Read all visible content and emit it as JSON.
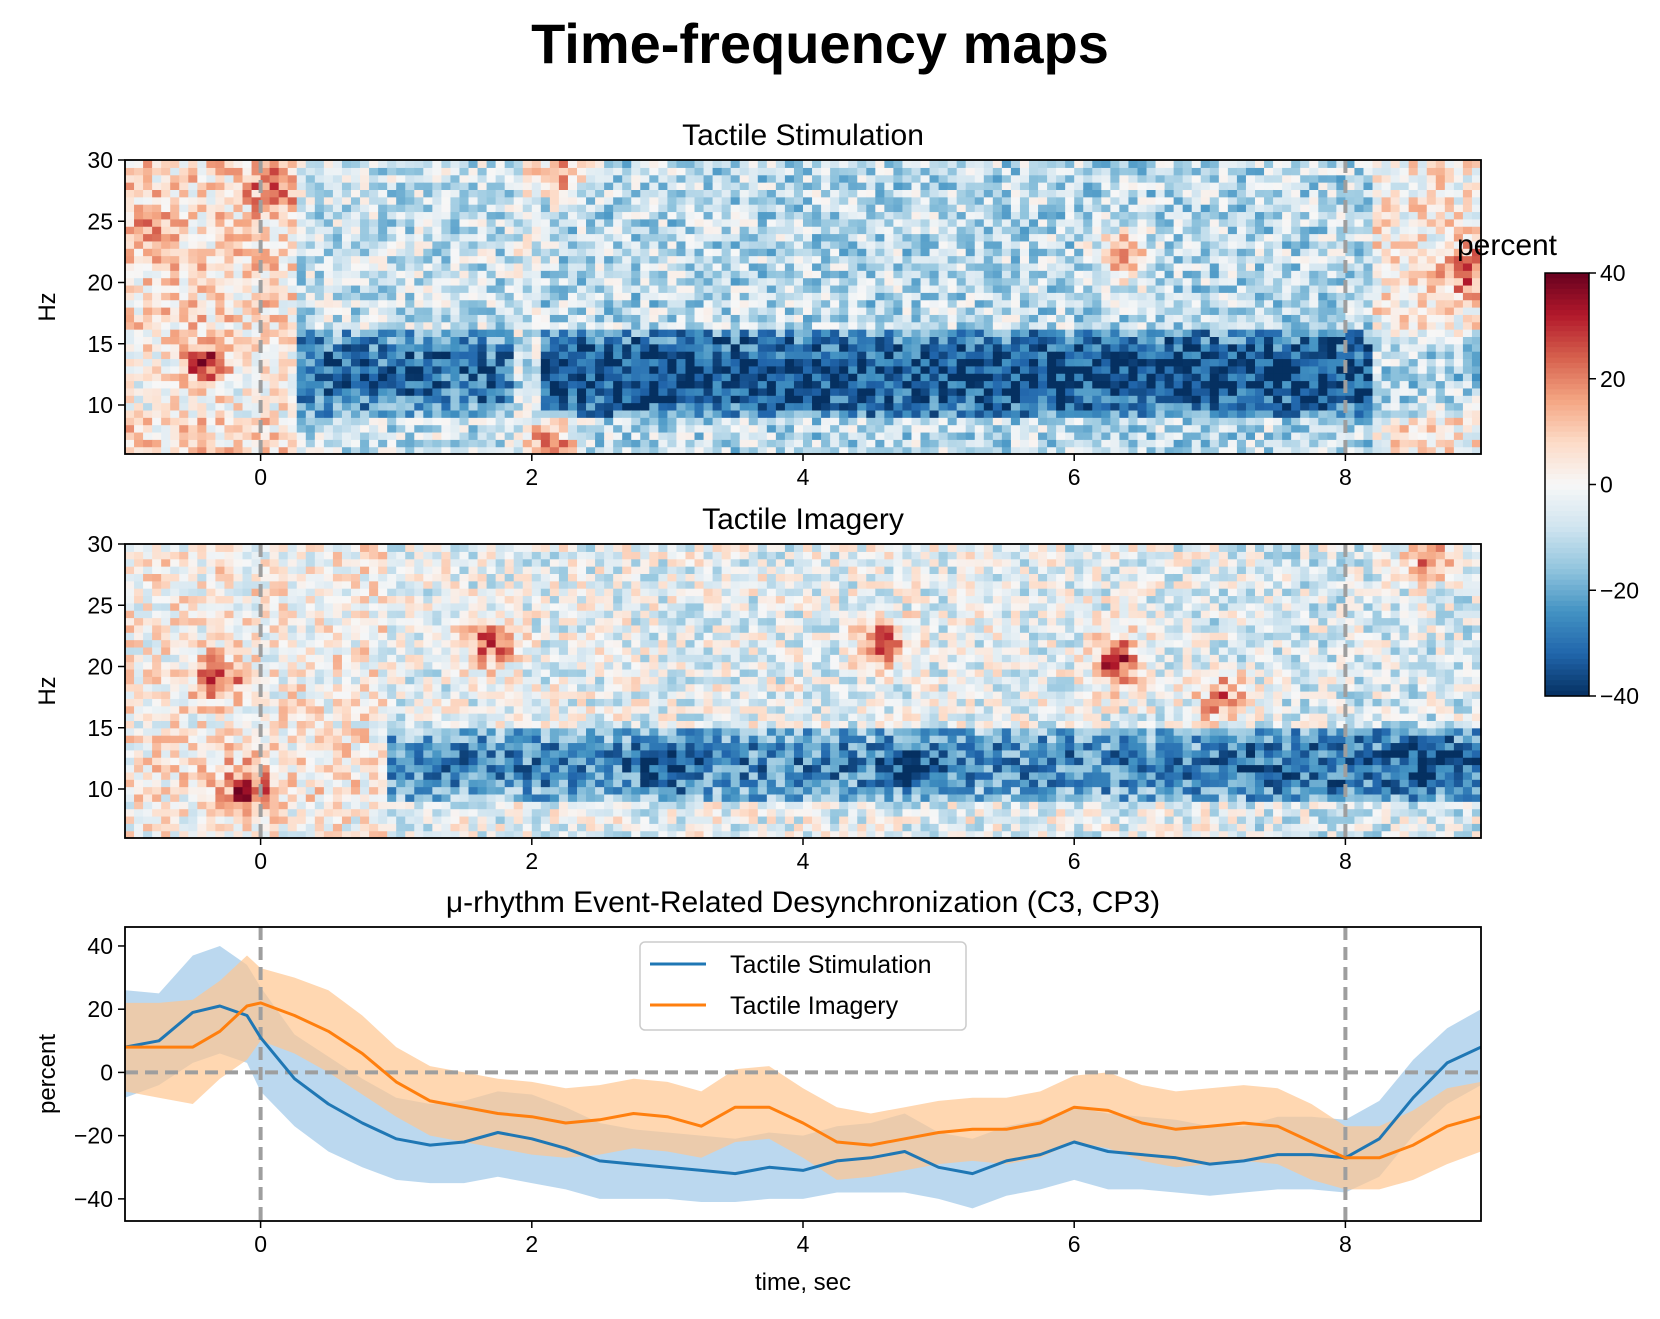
{
  "figure": {
    "title": "Time-frequency maps"
  },
  "colormap": {
    "name": "RdBu_r",
    "stops": [
      "#053061",
      "#2166ac",
      "#4393c3",
      "#92c5de",
      "#d1e5f0",
      "#f7f7f7",
      "#fddbc7",
      "#f4a582",
      "#d6604d",
      "#b2182b",
      "#67001f"
    ]
  },
  "colorbar": {
    "title": "percent",
    "range": [
      -40,
      40
    ],
    "ticks": [
      40,
      20,
      0,
      -20,
      -40
    ],
    "tick_labels": [
      "40",
      "20",
      "0",
      "−20",
      "−40"
    ]
  },
  "xaxis": {
    "range": [
      -1,
      9
    ],
    "ticks": [
      0,
      2,
      4,
      6,
      8
    ],
    "tick_labels": [
      "0",
      "2",
      "4",
      "6",
      "8"
    ],
    "label": "time, sec"
  },
  "events": {
    "onset": 0,
    "offset": 8
  },
  "chart_data": [
    {
      "type": "heatmap",
      "title": "Tactile Stimulation",
      "xlabel": "",
      "ylabel": "Hz",
      "xlim": [
        -1,
        9
      ],
      "ylim": [
        6,
        30
      ],
      "yticks": [
        10,
        15,
        20,
        25,
        30
      ],
      "ytick_labels": [
        "10",
        "15",
        "20",
        "25",
        "30"
      ],
      "value_range": [
        -40,
        40
      ],
      "band_hz": [
        9,
        16
      ],
      "band_suppression_percent": -35,
      "segments": [
        {
          "t0": -1.0,
          "t1": 0.25,
          "background": 6,
          "band": 0
        },
        {
          "t0": 0.25,
          "t1": 1.9,
          "background": -8,
          "band": -30
        },
        {
          "t0": 1.9,
          "t1": 2.05,
          "background": -4,
          "band": -8
        },
        {
          "t0": 2.05,
          "t1": 8.2,
          "background": -10,
          "band": -36
        },
        {
          "t0": 8.2,
          "t1": 9.0,
          "background": 3,
          "band": -12
        }
      ],
      "blobs": [
        {
          "t": -0.4,
          "f": 13.5,
          "v": 35
        },
        {
          "t": 0.1,
          "f": 28,
          "v": 30
        },
        {
          "t": 2.15,
          "f": 7,
          "v": 25
        },
        {
          "t": 2.2,
          "f": 29,
          "v": 25
        },
        {
          "t": 6.35,
          "f": 22,
          "v": 28
        },
        {
          "t": 8.9,
          "f": 21,
          "v": 30
        },
        {
          "t": -0.8,
          "f": 25,
          "v": 20
        },
        {
          "t": 6.9,
          "f": 12.5,
          "v": -40
        },
        {
          "t": 3.0,
          "f": 12.0,
          "v": -40
        }
      ]
    },
    {
      "type": "heatmap",
      "title": "Tactile Imagery",
      "xlabel": "",
      "ylabel": "Hz",
      "xlim": [
        -1,
        9
      ],
      "ylim": [
        6,
        30
      ],
      "yticks": [
        10,
        15,
        20,
        25,
        30
      ],
      "ytick_labels": [
        "10",
        "15",
        "20",
        "25",
        "30"
      ],
      "value_range": [
        -40,
        40
      ],
      "band_hz": [
        9,
        15
      ],
      "band_suppression_percent": -28,
      "segments": [
        {
          "t0": -1.0,
          "t1": 0.9,
          "background": 2,
          "band": 4
        },
        {
          "t0": 0.9,
          "t1": 7.0,
          "background": -3,
          "band": -26
        },
        {
          "t0": 7.0,
          "t1": 9.0,
          "background": -5,
          "band": -30
        }
      ],
      "blobs": [
        {
          "t": -0.3,
          "f": 19,
          "v": 28
        },
        {
          "t": -0.1,
          "f": 10,
          "v": 35
        },
        {
          "t": 1.7,
          "f": 22,
          "v": 28
        },
        {
          "t": 4.6,
          "f": 22,
          "v": 28
        },
        {
          "t": 6.3,
          "f": 20.5,
          "v": 35
        },
        {
          "t": 7.1,
          "f": 17.5,
          "v": 25
        },
        {
          "t": 8.6,
          "f": 29,
          "v": 25
        },
        {
          "t": 8.6,
          "f": 12.5,
          "v": -40
        },
        {
          "t": 3.0,
          "f": 12.0,
          "v": -38
        },
        {
          "t": 4.8,
          "f": 12.0,
          "v": -38
        }
      ]
    },
    {
      "type": "line",
      "title": "μ-rhythm Event-Related Desynchronization (C3, CP3)",
      "xlabel": "time, sec",
      "ylabel": "percent",
      "xlim": [
        -1,
        9
      ],
      "ylim": [
        -47,
        46
      ],
      "yticks": [
        -40,
        -20,
        0,
        20,
        40
      ],
      "ytick_labels": [
        "−40",
        "−20",
        "0",
        "20",
        "40"
      ],
      "grid": false,
      "legend": "upper center",
      "reference_lines": {
        "y": 0,
        "x": [
          0,
          8
        ]
      },
      "x": [
        -1.0,
        -0.75,
        -0.5,
        -0.3,
        -0.1,
        0.0,
        0.25,
        0.5,
        0.75,
        1.0,
        1.25,
        1.5,
        1.75,
        2.0,
        2.25,
        2.5,
        2.75,
        3.0,
        3.25,
        3.5,
        3.75,
        4.0,
        4.25,
        4.5,
        4.75,
        5.0,
        5.25,
        5.5,
        5.75,
        6.0,
        6.25,
        6.5,
        6.75,
        7.0,
        7.25,
        7.5,
        7.75,
        8.0,
        8.25,
        8.5,
        8.75,
        9.0
      ],
      "series": [
        {
          "name": "Tactile Stimulation",
          "color": "#1f77b4",
          "band_color": "#9ec8e8",
          "values": [
            8,
            10,
            19,
            21,
            18,
            11,
            -2,
            -10,
            -16,
            -21,
            -23,
            -22,
            -19,
            -21,
            -24,
            -28,
            -29,
            -30,
            -31,
            -32,
            -30,
            -31,
            -28,
            -27,
            -25,
            -30,
            -32,
            -28,
            -26,
            -22,
            -25,
            -26,
            -27,
            -29,
            -28,
            -26,
            -26,
            -27,
            -21,
            -8,
            3,
            8
          ],
          "lower": [
            -8,
            -4,
            3,
            6,
            3,
            -6,
            -17,
            -25,
            -30,
            -34,
            -35,
            -35,
            -33,
            -35,
            -37,
            -40,
            -40,
            -40,
            -41,
            -41,
            -40,
            -40,
            -38,
            -38,
            -38,
            -40,
            -43,
            -39,
            -37,
            -34,
            -37,
            -37,
            -38,
            -39,
            -38,
            -37,
            -37,
            -38,
            -33,
            -20,
            -10,
            -4
          ],
          "upper": [
            26,
            25,
            37,
            40,
            34,
            27,
            12,
            5,
            -2,
            -8,
            -10,
            -9,
            -6,
            -7,
            -11,
            -16,
            -18,
            -19,
            -20,
            -21,
            -19,
            -20,
            -17,
            -16,
            -13,
            -19,
            -21,
            -17,
            -15,
            -11,
            -13,
            -14,
            -15,
            -17,
            -17,
            -14,
            -14,
            -15,
            -9,
            4,
            14,
            20
          ]
        },
        {
          "name": "Tactile Imagery",
          "color": "#ff7f0e",
          "band_color": "#ffc690",
          "values": [
            8,
            8,
            8,
            13,
            21,
            22,
            18,
            13,
            6,
            -3,
            -9,
            -11,
            -13,
            -14,
            -16,
            -15,
            -13,
            -14,
            -17,
            -11,
            -11,
            -16,
            -22,
            -23,
            -21,
            -19,
            -18,
            -18,
            -16,
            -11,
            -12,
            -16,
            -18,
            -17,
            -16,
            -17,
            -22,
            -27,
            -27,
            -23,
            -17,
            -14
          ],
          "lower": [
            -6,
            -8,
            -10,
            -2,
            4,
            10,
            6,
            0,
            -7,
            -14,
            -20,
            -22,
            -24,
            -26,
            -27,
            -26,
            -24,
            -25,
            -27,
            -22,
            -21,
            -27,
            -34,
            -33,
            -31,
            -29,
            -28,
            -29,
            -27,
            -22,
            -24,
            -28,
            -30,
            -29,
            -28,
            -29,
            -34,
            -37,
            -37,
            -34,
            -29,
            -25
          ],
          "upper": [
            22,
            22,
            23,
            29,
            37,
            33,
            30,
            26,
            18,
            8,
            2,
            0,
            -2,
            -3,
            -5,
            -4,
            -2,
            -3,
            -6,
            1,
            2,
            -5,
            -11,
            -13,
            -11,
            -9,
            -8,
            -8,
            -6,
            -1,
            0,
            -4,
            -6,
            -5,
            -4,
            -5,
            -10,
            -17,
            -17,
            -12,
            -5,
            -3
          ]
        }
      ]
    }
  ]
}
